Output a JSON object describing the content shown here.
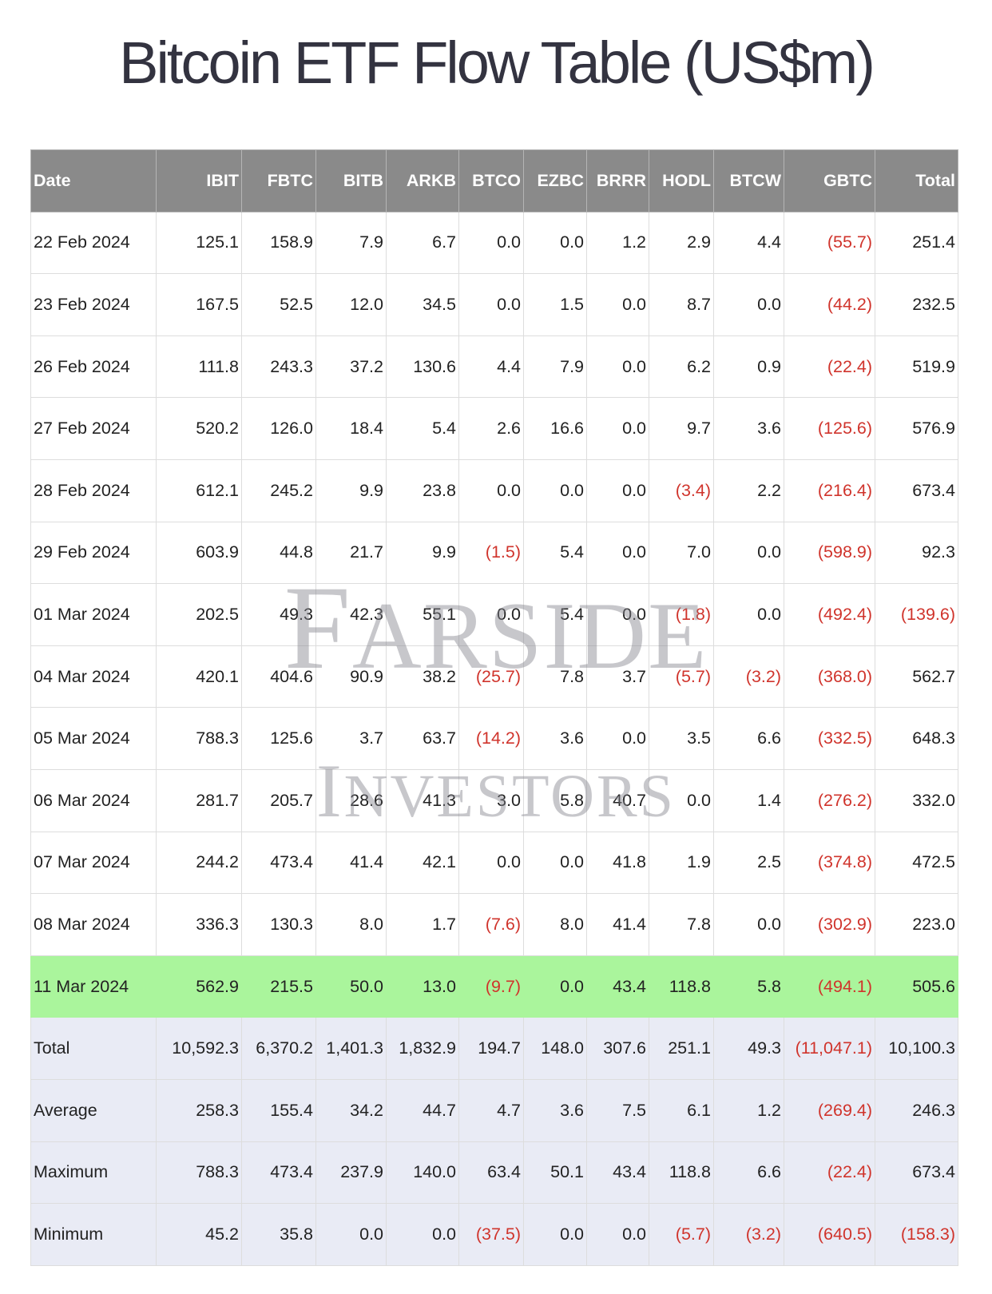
{
  "title": "Bitcoin ETF Flow Table (US$m)",
  "watermark": [
    "FARSIDE",
    "INVESTORS"
  ],
  "table": {
    "header": [
      "Date",
      "IBIT",
      "FBTC",
      "BITB",
      "ARKB",
      "BTCO",
      "EZBC",
      "BRRR",
      "HODL",
      "BTCW",
      "GBTC",
      "Total"
    ],
    "rows": [
      [
        "22 Feb 2024",
        "125.1",
        "158.9",
        "7.9",
        "6.7",
        "0.0",
        "0.0",
        "1.2",
        "2.9",
        "4.4",
        "(55.7)",
        "251.4"
      ],
      [
        "23 Feb 2024",
        "167.5",
        "52.5",
        "12.0",
        "34.5",
        "0.0",
        "1.5",
        "0.0",
        "8.7",
        "0.0",
        "(44.2)",
        "232.5"
      ],
      [
        "26 Feb 2024",
        "111.8",
        "243.3",
        "37.2",
        "130.6",
        "4.4",
        "7.9",
        "0.0",
        "6.2",
        "0.9",
        "(22.4)",
        "519.9"
      ],
      [
        "27 Feb 2024",
        "520.2",
        "126.0",
        "18.4",
        "5.4",
        "2.6",
        "16.6",
        "0.0",
        "9.7",
        "3.6",
        "(125.6)",
        "576.9"
      ],
      [
        "28 Feb 2024",
        "612.1",
        "245.2",
        "9.9",
        "23.8",
        "0.0",
        "0.0",
        "0.0",
        "(3.4)",
        "2.2",
        "(216.4)",
        "673.4"
      ],
      [
        "29 Feb 2024",
        "603.9",
        "44.8",
        "21.7",
        "9.9",
        "(1.5)",
        "5.4",
        "0.0",
        "7.0",
        "0.0",
        "(598.9)",
        "92.3"
      ],
      [
        "01 Mar 2024",
        "202.5",
        "49.3",
        "42.3",
        "55.1",
        "0.0",
        "5.4",
        "0.0",
        "(1.8)",
        "0.0",
        "(492.4)",
        "(139.6)"
      ],
      [
        "04 Mar 2024",
        "420.1",
        "404.6",
        "90.9",
        "38.2",
        "(25.7)",
        "7.8",
        "3.7",
        "(5.7)",
        "(3.2)",
        "(368.0)",
        "562.7"
      ],
      [
        "05 Mar 2024",
        "788.3",
        "125.6",
        "3.7",
        "63.7",
        "(14.2)",
        "3.6",
        "0.0",
        "3.5",
        "6.6",
        "(332.5)",
        "648.3"
      ],
      [
        "06 Mar 2024",
        "281.7",
        "205.7",
        "28.6",
        "41.3",
        "3.0",
        "5.8",
        "40.7",
        "0.0",
        "1.4",
        "(276.2)",
        "332.0"
      ],
      [
        "07 Mar 2024",
        "244.2",
        "473.4",
        "41.4",
        "42.1",
        "0.0",
        "0.0",
        "41.8",
        "1.9",
        "2.5",
        "(374.8)",
        "472.5"
      ],
      [
        "08 Mar 2024",
        "336.3",
        "130.3",
        "8.0",
        "1.7",
        "(7.6)",
        "8.0",
        "41.4",
        "7.8",
        "0.0",
        "(302.9)",
        "223.0"
      ],
      [
        "11 Mar 2024",
        "562.9",
        "215.5",
        "50.0",
        "13.0",
        "(9.7)",
        "0.0",
        "43.4",
        "118.8",
        "5.8",
        "(494.1)",
        "505.6"
      ]
    ],
    "summary": [
      [
        "Total",
        "10,592.3",
        "6,370.2",
        "1,401.3",
        "1,832.9",
        "194.7",
        "148.0",
        "307.6",
        "251.1",
        "49.3",
        "(11,047.1)",
        "10,100.3"
      ],
      [
        "Average",
        "258.3",
        "155.4",
        "34.2",
        "44.7",
        "4.7",
        "3.6",
        "7.5",
        "6.1",
        "1.2",
        "(269.4)",
        "246.3"
      ],
      [
        "Maximum",
        "788.3",
        "473.4",
        "237.9",
        "140.0",
        "63.4",
        "50.1",
        "43.4",
        "118.8",
        "6.6",
        "(22.4)",
        "673.4"
      ],
      [
        "Minimum",
        "45.2",
        "35.8",
        "0.0",
        "0.0",
        "(37.5)",
        "0.0",
        "0.0",
        "(5.7)",
        "(3.2)",
        "(640.5)",
        "(158.3)"
      ]
    ]
  }
}
